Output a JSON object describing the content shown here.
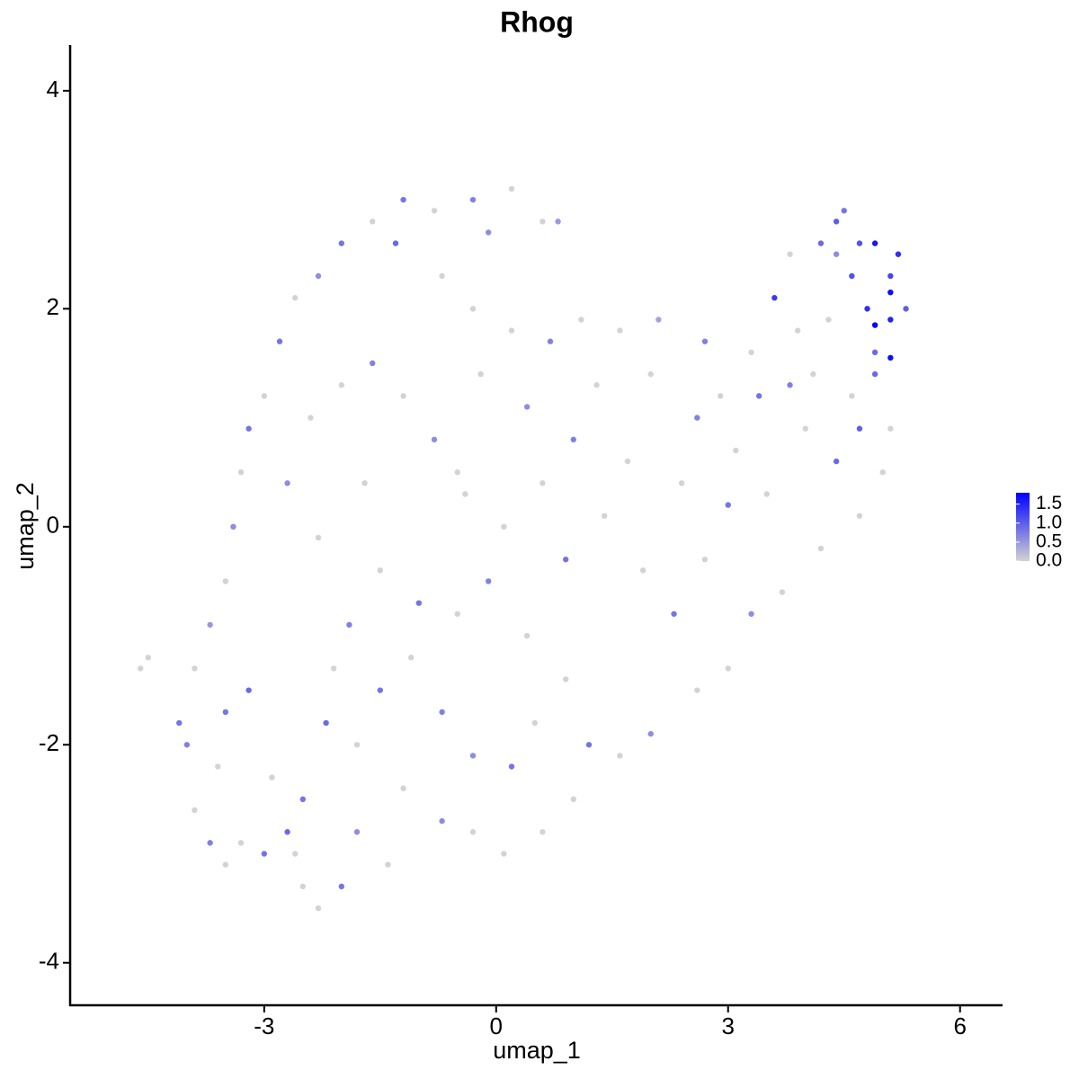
{
  "chart_data": {
    "type": "scatter",
    "title": "Rhog",
    "x_label": "umap_1",
    "y_label": "umap_2",
    "x": [
      -4.6,
      -4.5,
      -4.1,
      -3.9,
      -3.7,
      -3.5,
      -3.3,
      -3.0,
      -2.7,
      -2.5,
      -2.3,
      -2.0,
      -1.4,
      -0.7,
      -0.3,
      0.1,
      0.6,
      1.0,
      1.2,
      1.6,
      2.0,
      2.6,
      3.0,
      3.3,
      3.7,
      4.2,
      4.7,
      5.0,
      5.1,
      4.4,
      3.5,
      3.1,
      2.6,
      2.0,
      1.6,
      2.1,
      2.7,
      3.3,
      3.6,
      3.8,
      4.2,
      4.4,
      4.5,
      4.7,
      4.9,
      5.1,
      5.2,
      5.1,
      4.9,
      5.1,
      5.3,
      5.1,
      4.8,
      4.6,
      4.4,
      4.9,
      4.6,
      4.1,
      3.8,
      4.0,
      4.7,
      4.9,
      1.1,
      0.7,
      0.2,
      -0.3,
      -0.7,
      -1.3,
      -1.6,
      -1.2,
      -0.8,
      -0.3,
      0.2,
      0.6,
      0.8,
      -0.1,
      -2.0,
      -2.3,
      -2.6,
      -2.8,
      -3.0,
      -3.2,
      -3.3,
      -3.4,
      -3.5,
      -3.7,
      -3.9,
      -3.2,
      -2.9,
      -2.5,
      -2.2,
      -1.8,
      -1.5,
      -1.1,
      -0.7,
      -0.3,
      0.2,
      0.5,
      0.9,
      0.4,
      -0.1,
      -0.5,
      -1.0,
      -1.5,
      -1.9,
      -2.3,
      -2.7,
      -2.4,
      -2.0,
      -1.6,
      -1.2,
      -0.8,
      -0.4,
      0.1,
      0.6,
      1.0,
      1.3,
      1.7,
      1.4,
      1.9,
      2.3,
      2.7,
      3.0,
      2.4,
      0.9,
      -0.2,
      0.4,
      -1.7,
      -2.1,
      -3.6,
      -4.0,
      -2.6,
      -1.8,
      -1.2,
      -3.5,
      -0.5,
      2.9,
      3.4,
      4.3,
      3.9
    ],
    "y": [
      -1.3,
      -1.2,
      -1.8,
      -2.6,
      -2.9,
      -3.1,
      -2.9,
      -3.0,
      -2.8,
      -3.3,
      -3.5,
      -3.3,
      -3.1,
      -2.7,
      -2.8,
      -3.0,
      -2.8,
      -2.5,
      -2.0,
      -2.1,
      -1.9,
      -1.5,
      -1.3,
      -0.8,
      -0.6,
      -0.2,
      0.1,
      0.5,
      0.9,
      0.6,
      0.3,
      0.7,
      1.0,
      1.4,
      1.8,
      1.9,
      1.7,
      1.6,
      2.1,
      2.5,
      2.6,
      2.8,
      2.9,
      2.6,
      2.6,
      2.3,
      2.5,
      2.15,
      1.85,
      1.9,
      2.0,
      1.55,
      2.0,
      2.3,
      2.5,
      1.6,
      1.2,
      1.4,
      1.3,
      0.9,
      0.9,
      1.4,
      1.9,
      1.7,
      1.8,
      2.0,
      2.3,
      2.6,
      2.8,
      3.0,
      2.9,
      3.0,
      3.1,
      2.8,
      2.8,
      2.7,
      2.6,
      2.3,
      2.1,
      1.7,
      1.2,
      0.9,
      0.5,
      0.0,
      -0.5,
      -0.9,
      -1.3,
      -1.5,
      -2.3,
      -2.5,
      -1.8,
      -2.0,
      -1.5,
      -1.2,
      -1.7,
      -2.1,
      -2.2,
      -1.8,
      -1.4,
      -1.0,
      -0.5,
      -0.8,
      -0.7,
      -0.4,
      -0.9,
      -0.1,
      0.4,
      1.0,
      1.3,
      1.5,
      1.2,
      0.8,
      0.3,
      0.0,
      0.4,
      0.8,
      1.3,
      0.6,
      0.1,
      -0.4,
      -0.8,
      -0.3,
      0.2,
      0.4,
      -0.3,
      1.4,
      1.1,
      0.4,
      -1.3,
      -2.2,
      -2.0,
      -3.0,
      -2.8,
      -2.4,
      -1.7,
      0.5,
      1.2,
      1.2,
      1.9,
      1.8
    ],
    "expression": [
      0,
      0,
      0.8,
      0,
      0.7,
      0,
      0,
      0.8,
      0.9,
      0,
      0,
      0.8,
      0,
      0.6,
      0,
      0,
      0,
      0,
      0.8,
      0,
      0.6,
      0,
      0,
      0.6,
      0,
      0,
      0,
      0,
      0,
      0.9,
      0,
      0,
      0.7,
      0,
      0,
      0.4,
      0.7,
      0,
      1.3,
      0,
      0.9,
      1.0,
      0.8,
      1.1,
      1.6,
      1.2,
      1.4,
      1.7,
      1.8,
      1.5,
      1.0,
      1.7,
      1.4,
      1.1,
      0.6,
      0.9,
      0,
      0,
      0.7,
      0,
      1.0,
      0.9,
      0,
      0.7,
      0,
      0,
      0,
      0.9,
      0,
      0.8,
      0,
      0.7,
      0,
      0,
      0.5,
      0.6,
      0.8,
      0.6,
      0,
      0.8,
      0,
      0.8,
      0,
      0.6,
      0,
      0.5,
      0,
      0.9,
      0,
      0.8,
      0.9,
      0,
      0.8,
      0,
      0.7,
      0.6,
      0.8,
      0,
      0,
      0,
      0.7,
      0,
      0.8,
      0,
      0.7,
      0,
      0.6,
      0,
      0,
      0.7,
      0,
      0.6,
      0,
      0,
      0,
      0.7,
      0,
      0,
      0,
      0,
      0.8,
      0,
      0.8,
      0,
      0.8,
      0,
      0.6,
      0,
      0,
      0,
      0.7,
      0,
      0.6,
      0,
      0.8,
      0,
      0,
      0.8,
      0,
      0
    ],
    "xlim": [
      -5.51,
      6.55
    ],
    "ylim": [
      -4.39,
      4.42
    ],
    "xticks": [
      -3,
      0,
      3,
      6
    ],
    "yticks": [
      -4,
      -2,
      0,
      2,
      4
    ],
    "color_low": "#d3d3d3",
    "color_high": "#0000ff",
    "color_lim": [
      0,
      1.8
    ],
    "color_ticks": [
      {
        "value": 0,
        "label": "0.0"
      },
      {
        "value": 0.5,
        "label": "0.5"
      },
      {
        "value": 1,
        "label": "1.0"
      },
      {
        "value": 1.5,
        "label": "1.5"
      }
    ]
  }
}
